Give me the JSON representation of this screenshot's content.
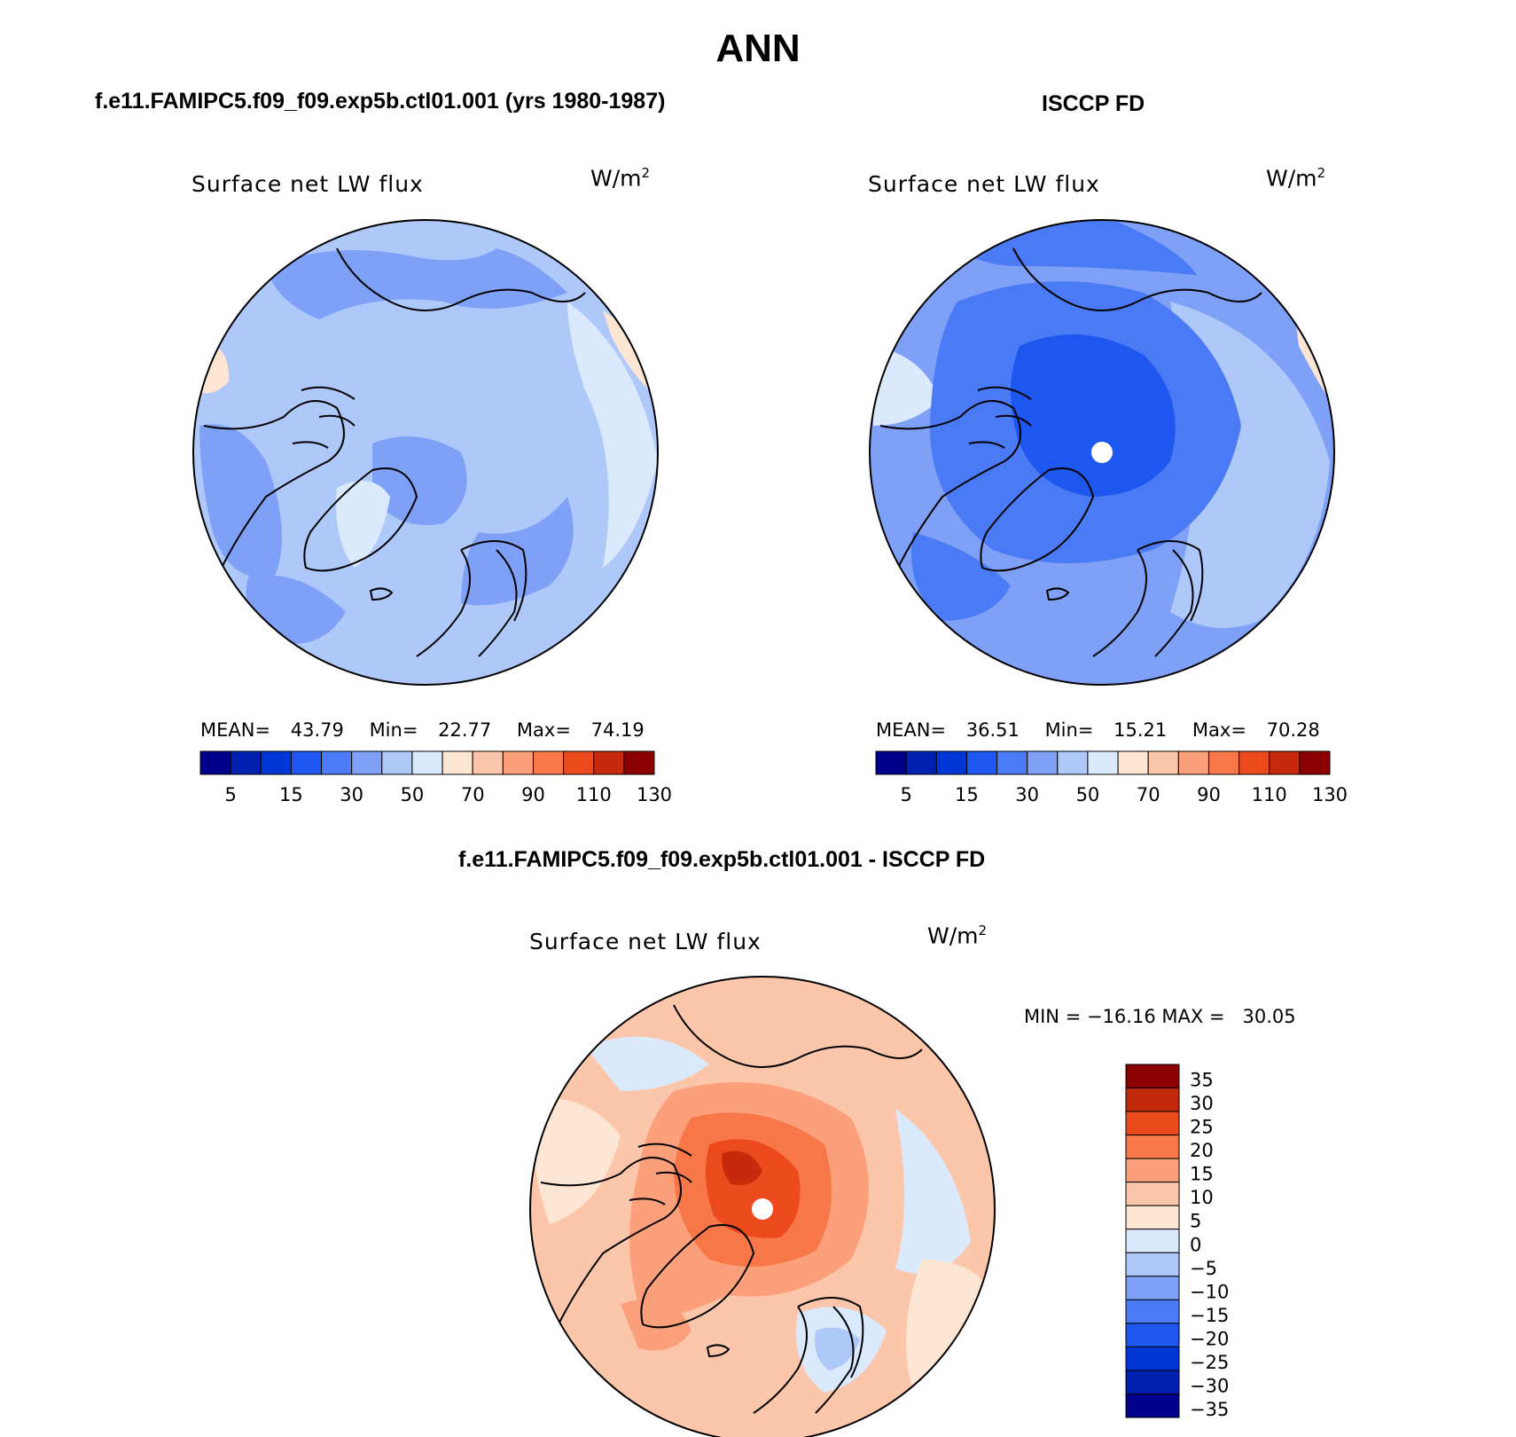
{
  "main_title": "ANN",
  "panels": [
    {
      "id": "model",
      "header": "f.e11.FAMIPC5.f09_f09.exp5b.ctl01.001 (yrs 1980-1987)",
      "title": "Surface net LW flux",
      "units": "W/m",
      "units_sup": "2",
      "stats": {
        "mean_label": "MEAN=",
        "mean": "43.79",
        "min_label": "Min=",
        "min": "22.77",
        "max_label": "Max=",
        "max": "74.19"
      }
    },
    {
      "id": "obs",
      "header": "ISCCP FD",
      "title": "Surface net LW flux",
      "units": "W/m",
      "units_sup": "2",
      "stats": {
        "mean_label": "MEAN=",
        "mean": "36.51",
        "min_label": "Min=",
        "min": "15.21",
        "max_label": "Max=",
        "max": "70.28"
      }
    },
    {
      "id": "diff",
      "header": "f.e11.FAMIPC5.f09_f09.exp5b.ctl01.001 - ISCCP FD",
      "title": "Surface net LW flux",
      "units": "W/m",
      "units_sup": "2",
      "stats_line": "MIN = −16.16 MAX =   30.05"
    }
  ],
  "field_colorbar": {
    "colors": [
      "#00008b",
      "#0020b0",
      "#0038d8",
      "#1e56f0",
      "#4a7af5",
      "#7ea1f7",
      "#aec8fa",
      "#dbe9fd",
      "#fde5d4",
      "#fcc6aa",
      "#fba07a",
      "#f87748",
      "#ec4a1c",
      "#c62a0a",
      "#8b0000"
    ],
    "labels": [
      "5",
      "15",
      "30",
      "50",
      "70",
      "90",
      "110",
      "130"
    ]
  },
  "diff_colorbar": {
    "colors": [
      "#8b0000",
      "#c02a0a",
      "#ec4a1c",
      "#f87748",
      "#fba07a",
      "#fcc6aa",
      "#fde5d4",
      "#dbe9fd",
      "#aec8fa",
      "#7ea1f7",
      "#4a7af5",
      "#1e56f0",
      "#0038d8",
      "#0020b0",
      "#00008b"
    ],
    "labels": [
      "35",
      "30",
      "25",
      "20",
      "15",
      "10",
      "5",
      "0",
      "−5",
      "−10",
      "−15",
      "−20",
      "−25",
      "−30",
      "−35"
    ]
  },
  "map_colors": {
    "model_base": "#aec8fa",
    "model_mid": "#7ea1f7",
    "model_light": "#dbe9fd",
    "model_warm": "#fde5d4",
    "obs_base": "#7ea1f7",
    "obs_dark": "#4a7af5",
    "obs_core": "#1e56f0",
    "obs_light": "#aec8fa",
    "obs_lighter": "#dbe9fd",
    "diff_base": "#fcc6aa",
    "diff_light": "#fde5d4",
    "diff_mid": "#fba07a",
    "diff_hot": "#f87748",
    "diff_core": "#ec4a1c",
    "diff_max": "#c62a0a",
    "diff_cool": "#dbe9fd",
    "diff_cooler": "#aec8fa"
  }
}
